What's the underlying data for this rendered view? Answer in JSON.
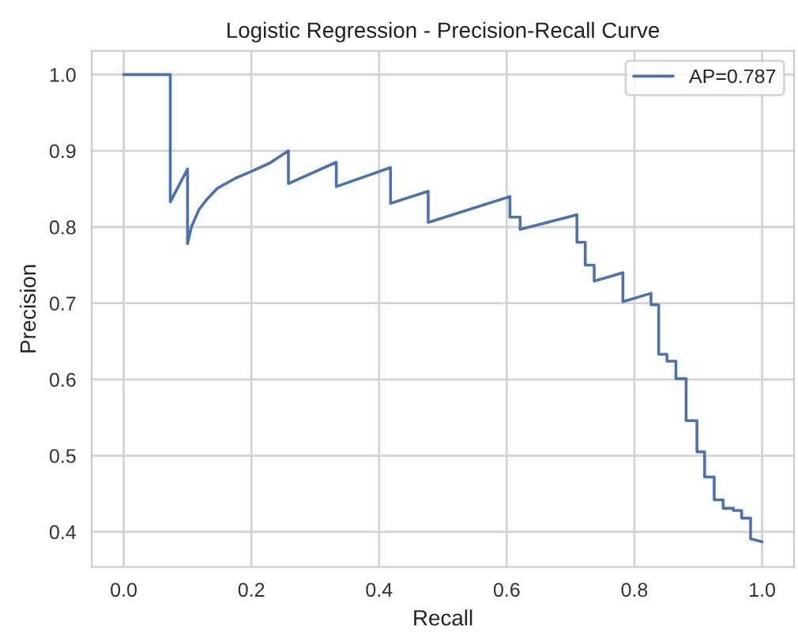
{
  "chart_data": {
    "type": "line",
    "title": "Logistic Regression - Precision-Recall Curve",
    "xlabel": "Recall",
    "ylabel": "Precision",
    "x": [
      0.0,
      0.073,
      0.073,
      0.1,
      0.1,
      0.106,
      0.118,
      0.13,
      0.147,
      0.175,
      0.2,
      0.229,
      0.258,
      0.258,
      0.333,
      0.333,
      0.418,
      0.418,
      0.477,
      0.477,
      0.605,
      0.605,
      0.621,
      0.621,
      0.71,
      0.71,
      0.723,
      0.723,
      0.737,
      0.737,
      0.782,
      0.782,
      0.826,
      0.826,
      0.838,
      0.838,
      0.851,
      0.851,
      0.865,
      0.865,
      0.881,
      0.881,
      0.898,
      0.898,
      0.91,
      0.91,
      0.925,
      0.925,
      0.939,
      0.939,
      0.955,
      0.955,
      0.968,
      0.968,
      0.982,
      0.982,
      1.0
    ],
    "series": [
      {
        "name": "AP=0.787",
        "color": "#4c72b0",
        "values": [
          1.0,
          1.0,
          0.833,
          0.876,
          0.778,
          0.8,
          0.823,
          0.836,
          0.851,
          0.864,
          0.873,
          0.884,
          0.9,
          0.857,
          0.885,
          0.853,
          0.878,
          0.831,
          0.847,
          0.806,
          0.84,
          0.813,
          0.813,
          0.797,
          0.816,
          0.78,
          0.78,
          0.75,
          0.75,
          0.729,
          0.74,
          0.702,
          0.713,
          0.698,
          0.698,
          0.633,
          0.633,
          0.624,
          0.624,
          0.601,
          0.601,
          0.546,
          0.546,
          0.505,
          0.505,
          0.472,
          0.472,
          0.442,
          0.442,
          0.431,
          0.431,
          0.428,
          0.428,
          0.418,
          0.418,
          0.391,
          0.387
        ]
      }
    ],
    "xlim": [
      -0.05,
      1.05
    ],
    "ylim": [
      0.354,
      1.031
    ],
    "xticks": [
      {
        "value": 0,
        "label": "0.0"
      },
      0.2,
      0.4,
      0.6,
      0.8,
      {
        "value": 1,
        "label": "1.0"
      }
    ],
    "yticks": [
      0.4,
      0.5,
      0.6,
      0.7,
      0.8,
      0.9,
      {
        "value": 1,
        "label": "1.0"
      }
    ],
    "grid": true,
    "legend": "top right"
  }
}
